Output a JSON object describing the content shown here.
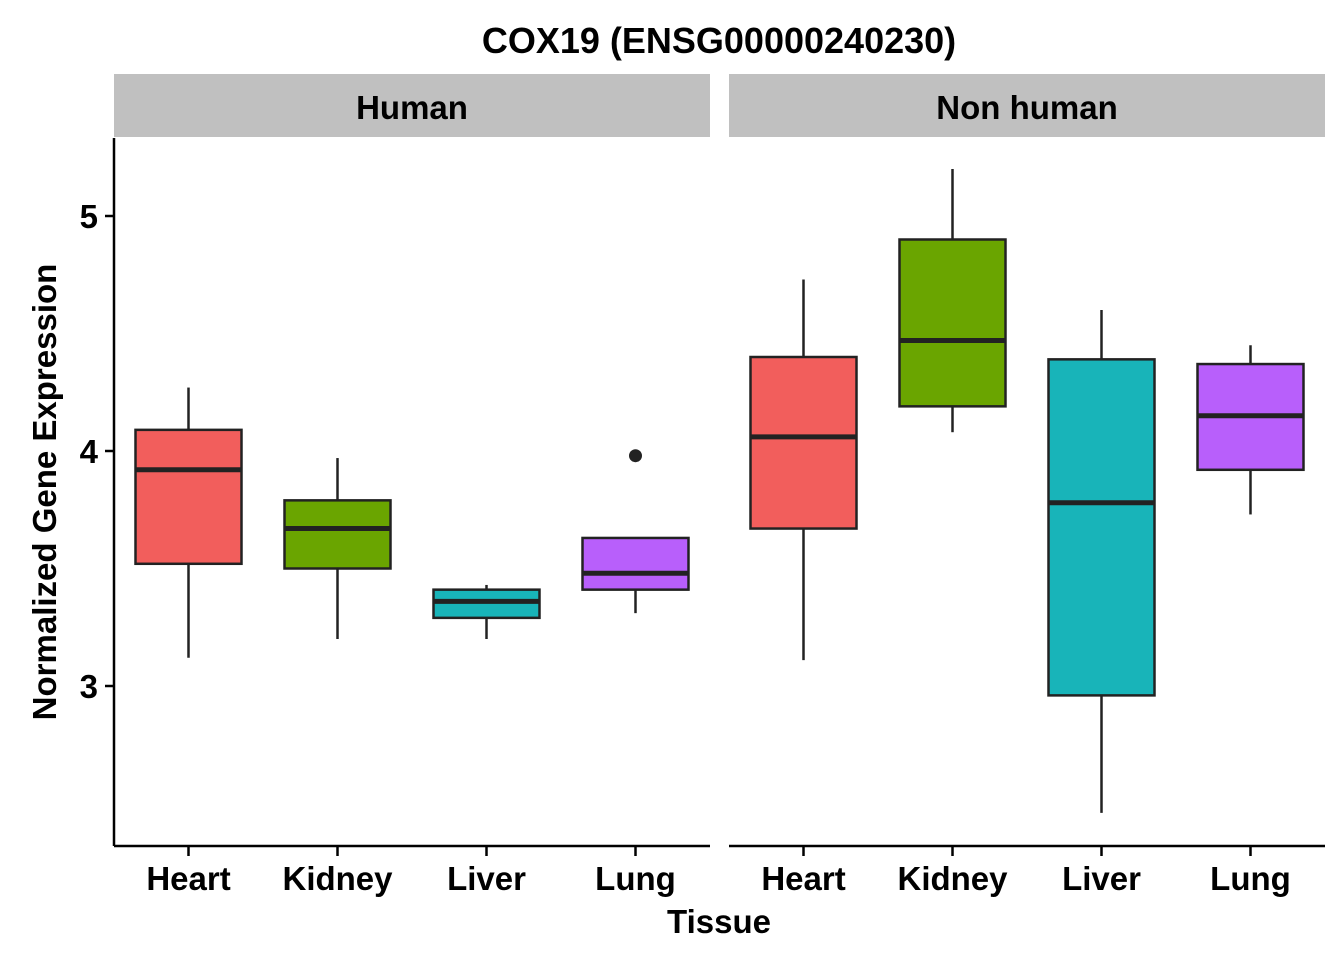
{
  "chart_data": {
    "type": "boxplot",
    "title": "COX19 (ENSG00000240230)",
    "xlabel": "Tissue",
    "ylabel": "Normalized Gene Expression",
    "ylim": [
      2.33,
      5.33
    ],
    "yticks": [
      3,
      4,
      5
    ],
    "categories": [
      "Heart",
      "Kidney",
      "Liver",
      "Lung"
    ],
    "colors": {
      "Heart": "#f25e5c",
      "Kidney": "#6aa500",
      "Liver": "#18b4b9",
      "Lung": "#b85ffb"
    },
    "grid": false,
    "legend": "none",
    "facets": [
      {
        "label": "Human",
        "boxes": [
          {
            "category": "Heart",
            "whisker_low": 3.12,
            "q1": 3.52,
            "median": 3.92,
            "q3": 4.09,
            "whisker_high": 4.27,
            "outliers": []
          },
          {
            "category": "Kidney",
            "whisker_low": 3.2,
            "q1": 3.5,
            "median": 3.67,
            "q3": 3.79,
            "whisker_high": 3.97,
            "outliers": []
          },
          {
            "category": "Liver",
            "whisker_low": 3.2,
            "q1": 3.29,
            "median": 3.36,
            "q3": 3.41,
            "whisker_high": 3.43,
            "outliers": []
          },
          {
            "category": "Lung",
            "whisker_low": 3.31,
            "q1": 3.41,
            "median": 3.48,
            "q3": 3.63,
            "whisker_high": 3.63,
            "outliers": [
              3.98
            ]
          }
        ]
      },
      {
        "label": "Non human",
        "boxes": [
          {
            "category": "Heart",
            "whisker_low": 3.11,
            "q1": 3.67,
            "median": 4.06,
            "q3": 4.4,
            "whisker_high": 4.73,
            "outliers": []
          },
          {
            "category": "Kidney",
            "whisker_low": 4.08,
            "q1": 4.19,
            "median": 4.47,
            "q3": 4.9,
            "whisker_high": 5.2,
            "outliers": []
          },
          {
            "category": "Liver",
            "whisker_low": 2.46,
            "q1": 2.96,
            "median": 3.78,
            "q3": 4.39,
            "whisker_high": 4.6,
            "outliers": []
          },
          {
            "category": "Lung",
            "whisker_low": 3.73,
            "q1": 3.92,
            "median": 4.15,
            "q3": 4.37,
            "whisker_high": 4.45,
            "outliers": []
          }
        ]
      }
    ]
  }
}
